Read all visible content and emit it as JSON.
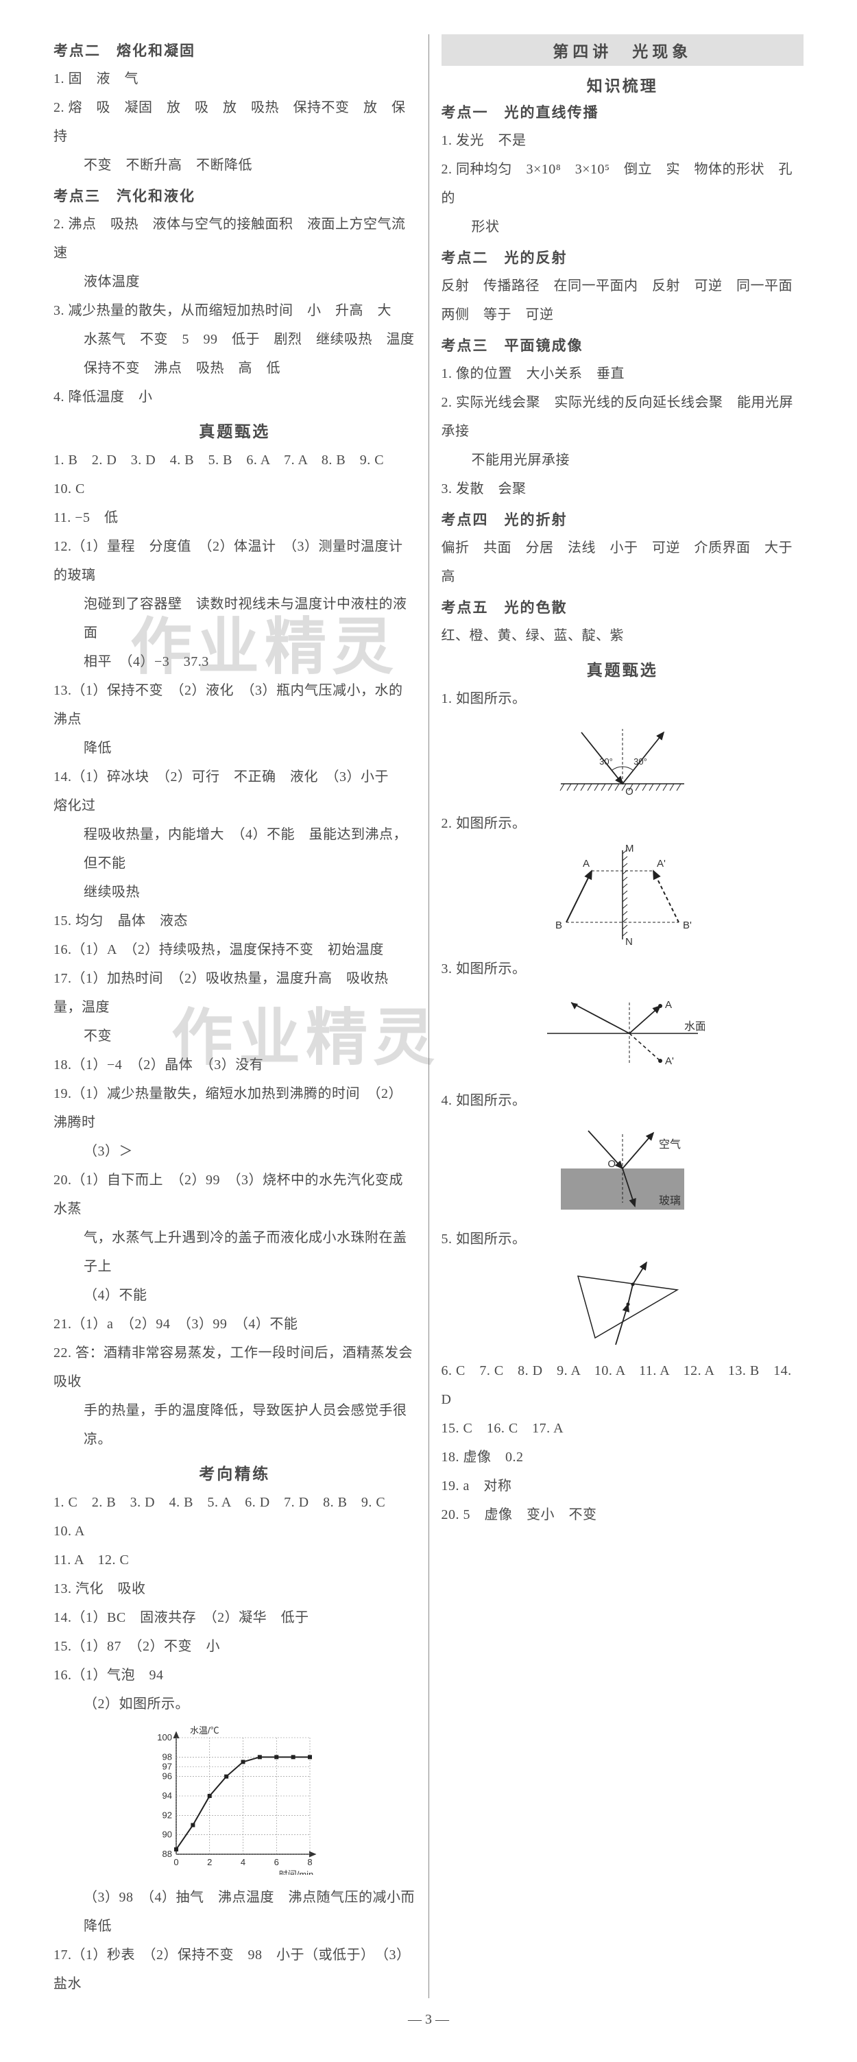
{
  "colors": {
    "text": "#4a4a4a",
    "bg": "#ffffff",
    "banner_bg": "#e0e0e0",
    "divider": "#888888",
    "watermark": "rgba(120,120,120,0.25)",
    "chart_grid": "#333333",
    "chart_line": "#222222",
    "glass_fill": "#9a9a9a"
  },
  "watermarks": {
    "wm1": "作业精灵",
    "wm2": "作业精灵"
  },
  "page_number": "— 3 —",
  "left": {
    "kp2": {
      "title": "考点二　熔化和凝固",
      "l1": "1. 固　液　气",
      "l2": "2. 熔　吸　凝固　放　吸　放　吸热　保持不变　放　保持",
      "l2b": "不变　不断升高　不断降低"
    },
    "kp3": {
      "title": "考点三　汽化和液化",
      "l1": "2. 沸点　吸热　液体与空气的接触面积　液面上方空气流速",
      "l1b": "液体温度",
      "l2": "3. 减少热量的散失，从而缩短加热时间　小　升高　大",
      "l2b": "水蒸气　不变　5　99　低于　剧烈　继续吸热　温度",
      "l2c": "保持不变　沸点　吸热　高　低",
      "l3": "4. 降低温度　小"
    },
    "zt": {
      "title": "真题甄选",
      "a1": "1. B　2. D　3. D　4. B　5. B　6. A　7. A　8. B　9. C　10. C",
      "a2": "11. −5　低",
      "a3": "12.（1）量程　分度值　（2）体温计　（3）测量时温度计的玻璃",
      "a3b": "泡碰到了容器壁　读数时视线未与温度计中液柱的液面",
      "a3c": "相平　（4）−3　37.3",
      "a4": "13.（1）保持不变　（2）液化　（3）瓶内气压减小，水的沸点",
      "a4b": "降低",
      "a5": "14.（1）碎冰块　（2）可行　不正确　液化　（3）小于　熔化过",
      "a5b": "程吸收热量，内能增大　（4）不能　虽能达到沸点，但不能",
      "a5c": "继续吸热",
      "a6": "15. 均匀　晶体　液态",
      "a7": "16.（1）A　（2）持续吸热，温度保持不变　初始温度",
      "a8": "17.（1）加热时间　（2）吸收热量，温度升高　吸收热量，温度",
      "a8b": "不变",
      "a9": "18.（1）−4　（2）晶体　（3）没有",
      "a10": "19.（1）减少热量散失，缩短水加热到沸腾的时间　（2）沸腾时",
      "a10b": "（3）＞",
      "a11": "20.（1）自下而上　（2）99　（3）烧杯中的水先汽化变成水蒸",
      "a11b": "气，水蒸气上升遇到冷的盖子而液化成小水珠附在盖子上",
      "a11c": "（4）不能",
      "a12": "21.（1）a　（2）94　（3）99　（4）不能",
      "a13": "22. 答：酒精非常容易蒸发，工作一段时间后，酒精蒸发会吸收",
      "a13b": "手的热量，手的温度降低，导致医护人员会感觉手很凉。"
    },
    "kx": {
      "title": "考向精练",
      "a1": "1. C　2. B　3. D　4. B　5. A　6. D　7. D　8. B　9. C　10. A",
      "a2": "11. A　12. C",
      "a3": "13. 汽化　吸收",
      "a4": "14.（1）BC　固液共存　（2）凝华　低于",
      "a5": "15.（1）87　（2）不变　小",
      "a6": "16.（1）气泡　94",
      "a6b": "（2）如图所示。",
      "a7": "（3）98　（4）抽气　沸点温度　沸点随气压的减小而降低",
      "a8": "17.（1）秒表　（2）保持不变　98　小于（或低于）　（3）盐水"
    },
    "chart": {
      "type": "line",
      "y_label": "水温/℃",
      "x_label": "时间/min",
      "y_values": [
        88,
        90,
        92,
        94,
        96,
        97,
        98,
        100
      ],
      "x_values": [
        0,
        2,
        4,
        6,
        8
      ],
      "data_points": [
        [
          0,
          88.5
        ],
        [
          1,
          91
        ],
        [
          2,
          94
        ],
        [
          3,
          96
        ],
        [
          4,
          97.5
        ],
        [
          5,
          98
        ],
        [
          6,
          98
        ],
        [
          7,
          98
        ],
        [
          8,
          98
        ]
      ],
      "line_color": "#222222",
      "axis_color": "#333333",
      "font_size": 13,
      "has_markers": true,
      "marker_shape": "square"
    }
  },
  "right": {
    "lecture": "第四讲　光现象",
    "zs": "知识梳理",
    "kp1": {
      "title": "考点一　光的直线传播",
      "l1": "1. 发光　不是",
      "l2": "2. 同种均匀　3×10⁸　3×10⁵　倒立　实　物体的形状　孔的",
      "l2b": "形状"
    },
    "kp2": {
      "title": "考点二　光的反射",
      "l1": "反射　传播路径　在同一平面内　反射　可逆　同一平面",
      "l2": "两侧　等于　可逆"
    },
    "kp3": {
      "title": "考点三　平面镜成像",
      "l1": "1. 像的位置　大小关系　垂直",
      "l2": "2. 实际光线会聚　实际光线的反向延长线会聚　能用光屏承接",
      "l2b": "不能用光屏承接",
      "l3": "3. 发散　会聚"
    },
    "kp4": {
      "title": "考点四　光的折射",
      "l1": "偏折　共面　分居　法线　小于　可逆　介质界面　大于　高"
    },
    "kp5": {
      "title": "考点五　光的色散",
      "l1": "红、橙、黄、绿、蓝、靛、紫"
    },
    "zt": {
      "title": "真题甄选",
      "f1": "1. 如图所示。",
      "f2": "2. 如图所示。",
      "f3": "3. 如图所示。",
      "f4": "4. 如图所示。",
      "f5": "5. 如图所示。",
      "ans": "6. C　7. C　8. D　9. A　10. A　11. A　12. A　13. B　14. D",
      "ans2": "15. C　16. C　17. A",
      "a18": "18. 虚像　0.2",
      "a19": "19. a　对称",
      "a20": "20. 5　虚像　变小　不变"
    },
    "fig1": {
      "type": "reflection",
      "angle1": "30°",
      "angle2": "30°",
      "point": "O"
    },
    "fig2": {
      "type": "mirror-image",
      "labels": [
        "M",
        "N",
        "A",
        "A'",
        "B",
        "B'"
      ]
    },
    "fig3": {
      "type": "water-reflection",
      "labels": [
        "A",
        "A'",
        "水面"
      ]
    },
    "fig4": {
      "type": "refraction",
      "labels": [
        "O",
        "空气",
        "玻璃"
      ],
      "glass_fill": "#9a9a9a"
    },
    "fig5": {
      "type": "prism"
    }
  }
}
